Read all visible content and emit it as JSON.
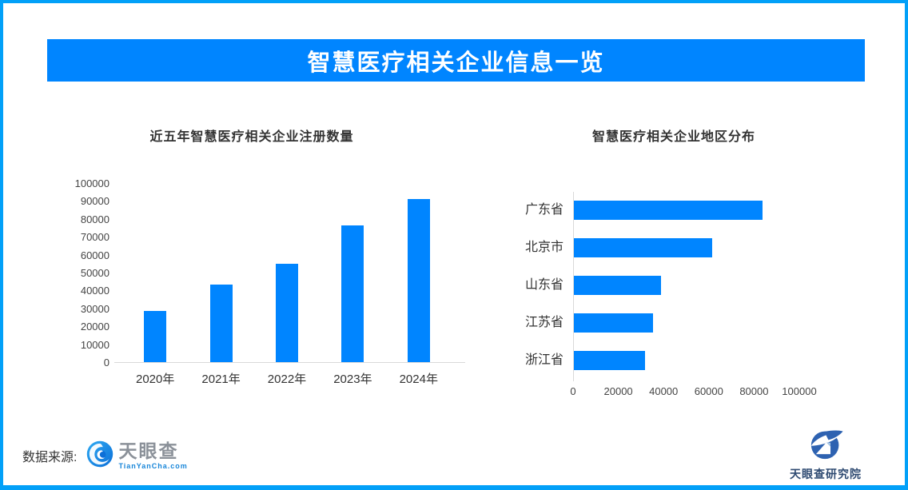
{
  "page": {
    "banner_title": "智慧医疗相关企业信息一览",
    "accent_color": "#0085FF",
    "frame_color": "#02A0F8"
  },
  "footer": {
    "source_label": "数据来源:",
    "tianyancha_name": "天眼查",
    "tianyancha_sub": "TianYanCha.com",
    "research_name": "天眼查研究院"
  },
  "chart_data": [
    {
      "type": "bar",
      "title": "近五年智慧医疗相关企业注册数量",
      "categories": [
        "2020年",
        "2021年",
        "2022年",
        "2023年",
        "2024年"
      ],
      "values": [
        28500,
        43500,
        55000,
        76500,
        91000
      ],
      "xlabel": "",
      "ylabel": "",
      "ylim": [
        0,
        100000
      ],
      "ytick_step": 10000,
      "bar_color": "#0085FF",
      "grid": false,
      "legend": "none"
    },
    {
      "type": "bar",
      "orientation": "horizontal",
      "title": "智慧医疗相关企业地区分布",
      "categories": [
        "广东省",
        "北京市",
        "山东省",
        "江苏省",
        "浙江省"
      ],
      "values": [
        83500,
        61000,
        38500,
        35000,
        31500
      ],
      "xlabel": "",
      "ylabel": "",
      "xlim": [
        0,
        100000
      ],
      "xtick_step": 20000,
      "bar_color": "#0085FF",
      "grid": false,
      "legend": "none"
    }
  ]
}
